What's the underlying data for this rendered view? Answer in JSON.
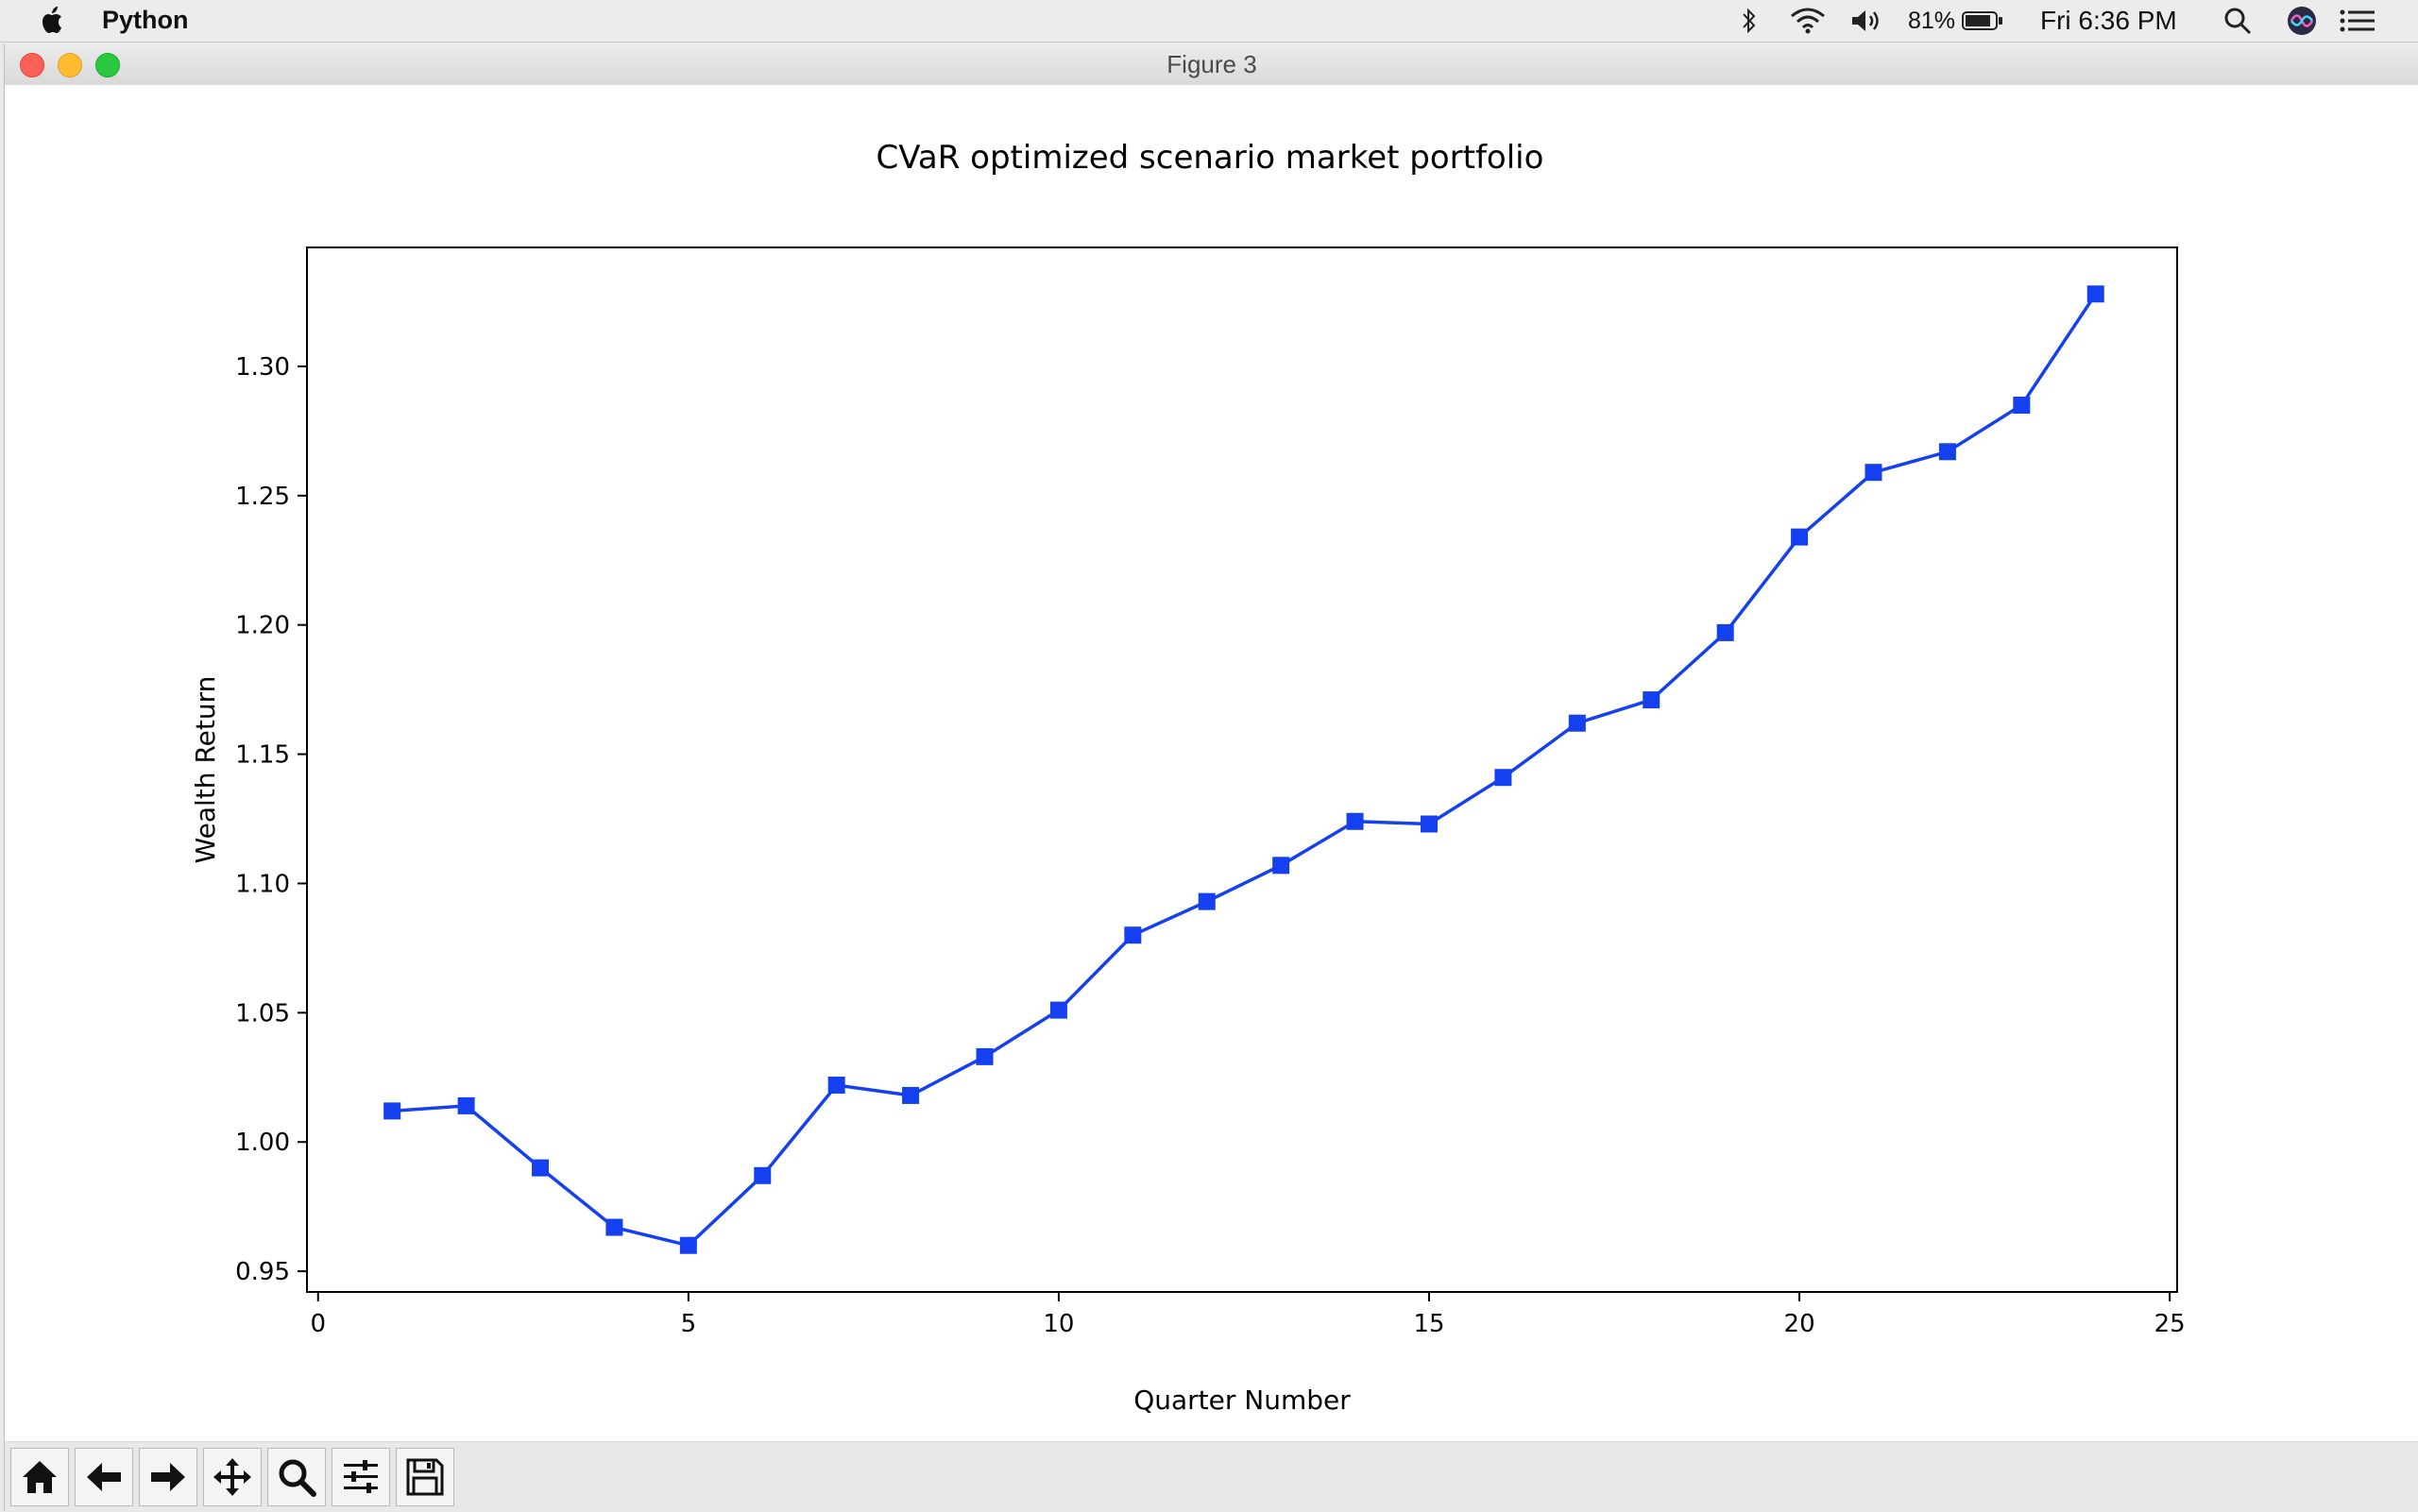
{
  "menubar": {
    "app_name": "Python",
    "battery": "81%",
    "clock": "Fri 6:36 PM"
  },
  "window": {
    "title": "Figure 3"
  },
  "toolbar": {
    "buttons": [
      "home-icon",
      "back-arrow-icon",
      "forward-arrow-icon",
      "pan-icon",
      "zoom-icon",
      "configure-subplots-icon",
      "save-icon"
    ]
  },
  "colors": {
    "series": "#1440f0",
    "axes": "#000000"
  },
  "chart_data": {
    "type": "line",
    "title": "CVaR optimized scenario market portfolio",
    "xlabel": "Quarter Number",
    "ylabel": "Wealth Return",
    "xlim": [
      -0.15,
      25.1
    ],
    "ylim": [
      0.942,
      1.346
    ],
    "xticks": [
      0,
      5,
      10,
      15,
      20,
      25
    ],
    "xtick_labels": [
      "0",
      "5",
      "10",
      "15",
      "20",
      "25"
    ],
    "yticks": [
      0.95,
      1.0,
      1.05,
      1.1,
      1.15,
      1.2,
      1.25,
      1.3
    ],
    "ytick_labels": [
      "0.95",
      "1.00",
      "1.05",
      "1.10",
      "1.15",
      "1.20",
      "1.25",
      "1.30"
    ],
    "grid": false,
    "marker": "square",
    "series": [
      {
        "x": [
          1,
          2,
          3,
          4,
          5,
          6,
          7,
          8,
          9,
          10,
          11,
          12,
          13,
          14,
          15,
          16,
          17,
          18,
          19,
          20,
          21,
          22,
          23,
          24
        ],
        "values": [
          1.012,
          1.014,
          0.99,
          0.967,
          0.96,
          0.987,
          1.022,
          1.018,
          1.033,
          1.051,
          1.08,
          1.093,
          1.107,
          1.124,
          1.123,
          1.141,
          1.162,
          1.171,
          1.197,
          1.234,
          1.259,
          1.267,
          1.285,
          1.328
        ]
      }
    ]
  }
}
